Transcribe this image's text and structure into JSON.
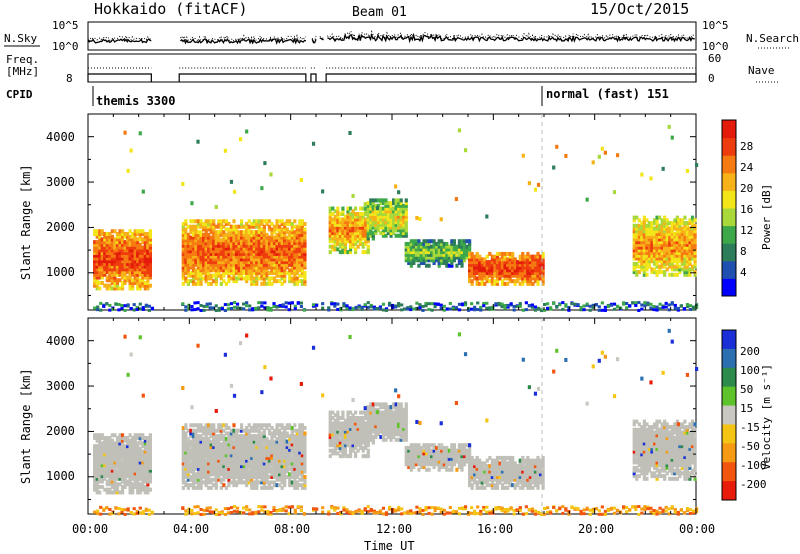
{
  "header": {
    "station": "Hokkaido (fitACF)",
    "beam": "Beam 01",
    "date": "15/Oct/2015"
  },
  "sky_panel": {
    "left_label": "N.Sky",
    "right_label": "N.Search",
    "left_ticks": [
      "10^5",
      "10^0"
    ],
    "right_ticks": [
      "10^5",
      "10^0"
    ]
  },
  "freq_panel": {
    "left_label_line1": "Freq.",
    "left_label_line2": "[MHz]",
    "right_label": "Nave",
    "left_ticks": [
      "8"
    ],
    "right_ticks": [
      "60",
      "0"
    ]
  },
  "cpid": {
    "label": "CPID",
    "modes": [
      {
        "name": "themis 3300",
        "start_hour": 0
      },
      {
        "name": "normal (fast) 151",
        "start_hour": 18
      }
    ]
  },
  "time_axis": {
    "label": "Time UT",
    "tick_labels": [
      "00:00",
      "04:00",
      "08:00",
      "12:00",
      "16:00",
      "20:00",
      "00:00"
    ]
  },
  "power_panel": {
    "ylabel": "Slant Range [km]",
    "yticks": [
      "1000",
      "2000",
      "3000",
      "4000"
    ],
    "colorbar_label": "Power [dB]",
    "colorbar_ticks": [
      "4",
      "8",
      "12",
      "16",
      "20",
      "24",
      "28"
    ]
  },
  "velocity_panel": {
    "ylabel": "Slant Range [km]",
    "yticks": [
      "1000",
      "2000",
      "3000",
      "4000"
    ],
    "colorbar_label": "Velocity [m s⁻¹]",
    "colorbar_ticks": [
      "200",
      "100",
      "50",
      "15",
      "-15",
      "-50",
      "-100",
      "-200"
    ]
  },
  "colors": {
    "power_scale": [
      "#0000ff",
      "#1f4fb0",
      "#2e7d5a",
      "#3ca84a",
      "#a8d83a",
      "#f2e61a",
      "#f7b21a",
      "#f57a12",
      "#ee3c0e",
      "#e41a0a"
    ],
    "velocity_scale": [
      "#1a2fd8",
      "#2b6fb0",
      "#2c8a4a",
      "#5ec22a",
      "#c8c8c0",
      "#f5c515",
      "#f59a12",
      "#f2560e",
      "#e81a0a"
    ],
    "ground_scatter": "#c0c0b8"
  },
  "chart_data": {
    "type": "heatmap",
    "time_range_hours": [
      0,
      24
    ],
    "range_axis_km": [
      180,
      4500
    ],
    "data_gaps_hours": [
      [
        2.5,
        3.6
      ],
      [
        8.6,
        8.8
      ],
      [
        9.0,
        9.1
      ],
      [
        9.3,
        9.4
      ]
    ],
    "power_regions": [
      {
        "t0": 0.2,
        "t1": 2.5,
        "r0": 700,
        "r1": 2000,
        "db": 26
      },
      {
        "t0": 3.6,
        "t1": 8.5,
        "r0": 800,
        "r1": 2200,
        "db": 25
      },
      {
        "t0": 9.4,
        "t1": 11.0,
        "r0": 1500,
        "r1": 2500,
        "db": 22
      },
      {
        "t0": 11.0,
        "t1": 12.5,
        "r0": 1800,
        "r1": 2700,
        "db": 18
      },
      {
        "t0": 12.5,
        "t1": 15.0,
        "r0": 1200,
        "r1": 1800,
        "db": 14
      },
      {
        "t0": 15.0,
        "t1": 18.0,
        "r0": 800,
        "r1": 1500,
        "db": 27
      },
      {
        "t0": 21.5,
        "t1": 24.0,
        "r0": 1000,
        "r1": 2300,
        "db": 22
      }
    ]
  }
}
